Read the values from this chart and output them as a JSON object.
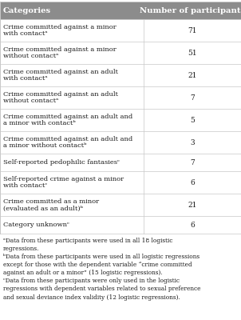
{
  "header": [
    "Categories",
    "Number of participants"
  ],
  "rows": [
    [
      "Crime committed against a minor\nwith contactᵃ",
      "71"
    ],
    [
      "Crime committed against a minor\nwithout contactᵃ",
      "51"
    ],
    [
      "Crime committed against an adult\nwith contactᵃ",
      "21"
    ],
    [
      "Crime committed against an adult\nwithout contactᵃ",
      "7"
    ],
    [
      "Crime committed against an adult and\na minor with contactᵇ",
      "5"
    ],
    [
      "Crime committed against an adult and\na minor without contactᵇ",
      "3"
    ],
    [
      "Self-reported pedophilic fantasiesᶜ",
      "7"
    ],
    [
      "Self-reported crime against a minor\nwith contactᶜ",
      "6"
    ],
    [
      "Crime committed as a minor\n(evaluated as an adult)ᵇ",
      "21"
    ],
    [
      "Category unknownᶜ",
      "6"
    ]
  ],
  "footnotes": "ᵃData from these participants were used in all 18 logistic regressions.\nᵇData from these participants were used in all logistic regressions except for those with the dependent variable “crime committed against an adult or a minor” (15 logistic regressions).\nᶜData from these participants were only used in the logistic regressions with dependent variables related to sexual preference and sexual deviance index validity (12 logistic regressions).",
  "header_bg": "#8c8c8c",
  "header_text_color": "#ffffff",
  "row_bg": "#ffffff",
  "border_color": "#c8c8c8",
  "text_color": "#1a1a1a",
  "footnote_color": "#1a1a1a",
  "col_split": 0.595,
  "fig_width": 3.02,
  "fig_height": 4.0,
  "dpi": 100
}
